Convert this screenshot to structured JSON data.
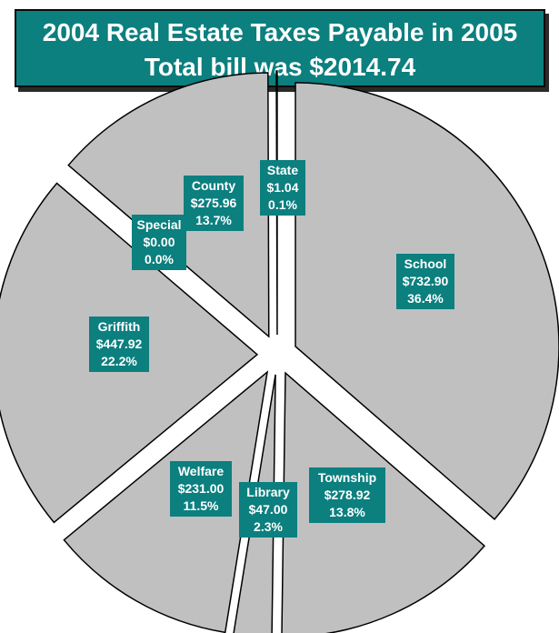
{
  "chart_data": {
    "type": "pie",
    "title": "2004 Real Estate Taxes Payable in 2005",
    "subtitle": "Total bill was $2014.74",
    "slices": [
      {
        "name": "School",
        "amount": "$732.90",
        "percent": "36.4%",
        "value": 732.9
      },
      {
        "name": "Township",
        "amount": "$278.92",
        "percent": "13.8%",
        "value": 278.92
      },
      {
        "name": "Library",
        "amount": "$47.00",
        "percent": "2.3%",
        "value": 47.0
      },
      {
        "name": "Welfare",
        "amount": "$231.00",
        "percent": "11.5%",
        "value": 231.0
      },
      {
        "name": "Griffith",
        "amount": "$447.92",
        "percent": "22.2%",
        "value": 447.92
      },
      {
        "name": "Special",
        "amount": "$0.00",
        "percent": "0.0%",
        "value": 0.0
      },
      {
        "name": "County",
        "amount": "$275.96",
        "percent": "13.7%",
        "value": 275.96
      },
      {
        "name": "State",
        "amount": "$1.04",
        "percent": "0.1%",
        "value": 1.04
      }
    ],
    "colors": {
      "slice_fill": "#c0c0c0",
      "slice_stroke": "#000000",
      "label_bg": "#0c7f7f",
      "label_text": "#ffffff"
    }
  }
}
